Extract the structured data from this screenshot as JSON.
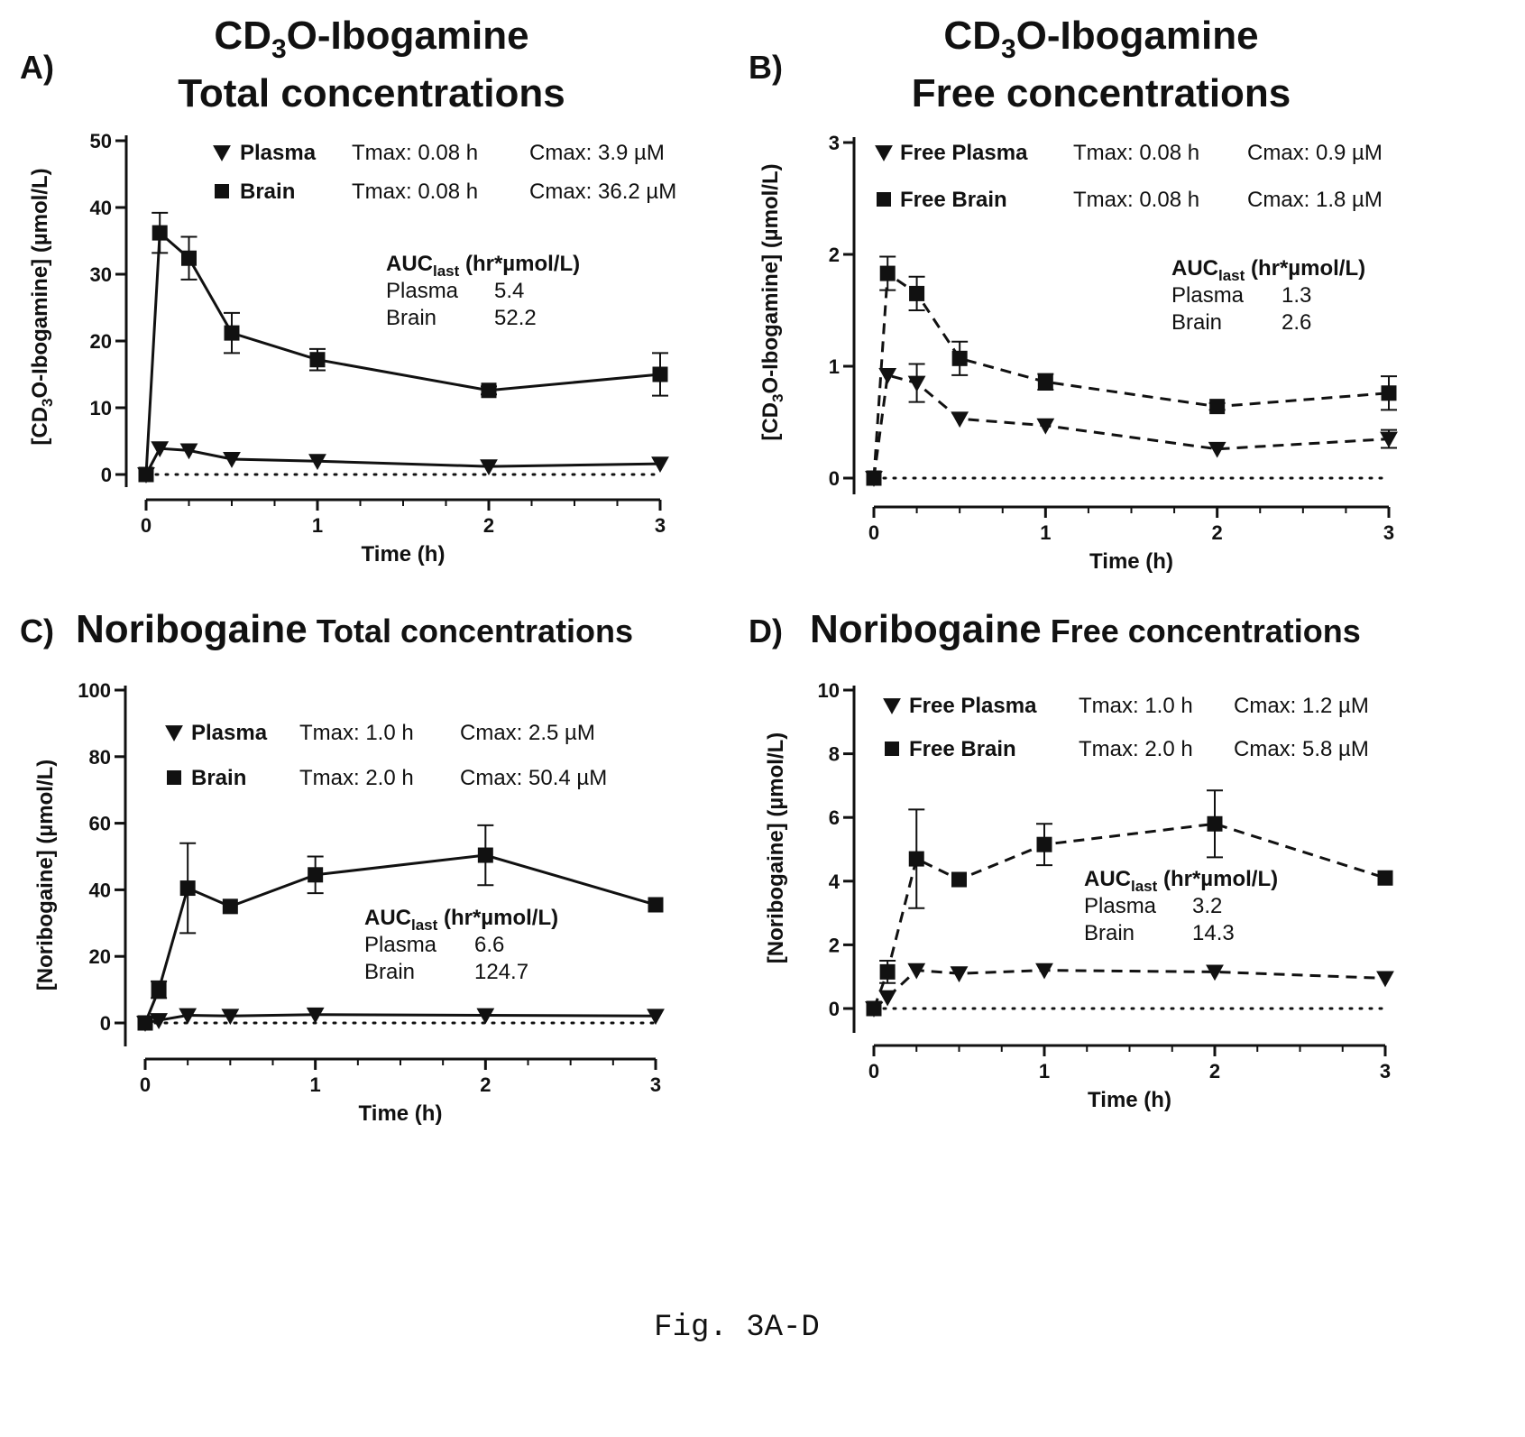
{
  "figure": {
    "caption": "Fig. 3A-D"
  },
  "colors": {
    "ink": "#111111",
    "background": "#ffffff"
  },
  "chart_data": [
    {
      "id": "A",
      "type": "line",
      "letter": "A)",
      "title_parts": [
        "CD",
        "3",
        "O-Ibogamine"
      ],
      "title_line2": "Total concentrations",
      "xlabel": "Time (h)",
      "ylabel_parts": [
        "[CD",
        "3",
        "O-Ibogamine] (µmol/L)"
      ],
      "xlim": [
        0,
        3
      ],
      "ylim": [
        0,
        50
      ],
      "xticks": [
        0,
        1,
        2,
        3
      ],
      "yticks": [
        0,
        10,
        20,
        30,
        40,
        50
      ],
      "line_style": "solid",
      "zero_line": "dotted",
      "legend": [
        {
          "marker": "triangle-down",
          "name": "Plasma",
          "tmax": "Tmax: 0.08 h",
          "cmax": "Cmax: 3.9 µM"
        },
        {
          "marker": "square",
          "name": "Brain",
          "tmax": "Tmax: 0.08 h",
          "cmax": "Cmax: 36.2 µM"
        }
      ],
      "auc": {
        "label": "AUC",
        "sub": "last",
        "unit": "(hr*µmol/L)",
        "rows": [
          {
            "name": "Plasma",
            "value": "5.4"
          },
          {
            "name": "Brain",
            "value": "52.2"
          }
        ]
      },
      "series": [
        {
          "name": "Plasma",
          "marker": "triangle-down",
          "x": [
            0,
            0.08,
            0.25,
            0.5,
            1,
            2,
            3
          ],
          "y": [
            0,
            3.9,
            3.6,
            2.3,
            2.0,
            1.2,
            1.6
          ],
          "err": [
            0,
            0,
            0,
            0,
            0,
            0,
            0
          ]
        },
        {
          "name": "Brain",
          "marker": "square",
          "x": [
            0,
            0.08,
            0.25,
            0.5,
            1,
            2,
            3
          ],
          "y": [
            0,
            36.2,
            32.4,
            21.2,
            17.2,
            12.6,
            15.0
          ],
          "err": [
            0,
            3.0,
            3.2,
            3.0,
            1.6,
            0.6,
            3.2
          ]
        }
      ]
    },
    {
      "id": "B",
      "type": "line",
      "letter": "B)",
      "title_parts": [
        "CD",
        "3",
        "O-Ibogamine"
      ],
      "title_line2": "Free concentrations",
      "xlabel": "Time (h)",
      "ylabel_parts": [
        "[CD",
        "3",
        "O-Ibogamine] (µmol/L)"
      ],
      "xlim": [
        0,
        3
      ],
      "ylim": [
        0,
        3
      ],
      "xticks": [
        0,
        1,
        2,
        3
      ],
      "yticks": [
        0,
        1,
        2,
        3
      ],
      "line_style": "dashed",
      "zero_line": "dotted",
      "legend": [
        {
          "marker": "triangle-down",
          "name": "Free Plasma",
          "tmax": "Tmax: 0.08 h",
          "cmax": "Cmax: 0.9 µM"
        },
        {
          "marker": "square",
          "name": "Free Brain",
          "tmax": "Tmax: 0.08 h",
          "cmax": "Cmax: 1.8 µM"
        }
      ],
      "auc": {
        "label": "AUC",
        "sub": "last",
        "unit": "(hr*µmol/L)",
        "rows": [
          {
            "name": "Plasma",
            "value": "1.3"
          },
          {
            "name": "Brain",
            "value": "2.6"
          }
        ]
      },
      "series": [
        {
          "name": "Free Plasma",
          "marker": "triangle-down",
          "x": [
            0,
            0.08,
            0.25,
            0.5,
            1,
            2,
            3
          ],
          "y": [
            0,
            0.92,
            0.85,
            0.53,
            0.47,
            0.26,
            0.35
          ],
          "err": [
            0,
            0,
            0.17,
            0,
            0,
            0,
            0.08
          ]
        },
        {
          "name": "Free Brain",
          "marker": "square",
          "x": [
            0,
            0.08,
            0.25,
            0.5,
            1,
            2,
            3
          ],
          "y": [
            0,
            1.83,
            1.65,
            1.07,
            0.86,
            0.64,
            0.76
          ],
          "err": [
            0,
            0.15,
            0.15,
            0.15,
            0.07,
            0.03,
            0.15
          ]
        }
      ]
    },
    {
      "id": "C",
      "type": "line",
      "letter": "C)",
      "title_bold": "Noribogaine",
      "title_rest": "Total concentrations",
      "xlabel": "Time (h)",
      "ylabel": "[Noribogaine] (µmol/L)",
      "xlim": [
        0,
        3
      ],
      "ylim": [
        0,
        100
      ],
      "xticks": [
        0,
        1,
        2,
        3
      ],
      "yticks": [
        0,
        20,
        40,
        60,
        80,
        100
      ],
      "line_style": "solid",
      "zero_line": "dotted",
      "legend": [
        {
          "marker": "triangle-down",
          "name": "Plasma",
          "tmax": "Tmax: 1.0 h",
          "cmax": "Cmax: 2.5 µM"
        },
        {
          "marker": "square",
          "name": "Brain",
          "tmax": "Tmax: 2.0 h",
          "cmax": "Cmax: 50.4 µM"
        }
      ],
      "auc": {
        "label": "AUC",
        "sub": "last",
        "unit": "(hr*µmol/L)",
        "rows": [
          {
            "name": "Plasma",
            "value": "6.6"
          },
          {
            "name": "Brain",
            "value": "124.7"
          }
        ]
      },
      "series": [
        {
          "name": "Plasma",
          "marker": "triangle-down",
          "x": [
            0,
            0.08,
            0.25,
            0.5,
            1,
            2,
            3
          ],
          "y": [
            0,
            0.8,
            2.3,
            2.1,
            2.5,
            2.3,
            2.1
          ],
          "err": [
            0,
            0,
            0,
            0,
            0,
            0,
            0
          ]
        },
        {
          "name": "Brain",
          "marker": "square",
          "x": [
            0,
            0.08,
            0.25,
            0.5,
            1,
            2,
            3
          ],
          "y": [
            0,
            10,
            40.5,
            35,
            44.5,
            50.4,
            35.5
          ],
          "err": [
            0,
            2.5,
            13.5,
            0,
            5.5,
            9,
            0
          ]
        }
      ]
    },
    {
      "id": "D",
      "type": "line",
      "letter": "D)",
      "title_bold": "Noribogaine",
      "title_rest": "Free concentrations",
      "xlabel": "Time (h)",
      "ylabel": "[Noribogaine] (µmol/L)",
      "xlim": [
        0,
        3
      ],
      "ylim": [
        0,
        10
      ],
      "xticks": [
        0,
        1,
        2,
        3
      ],
      "yticks": [
        0,
        2,
        4,
        6,
        8,
        10
      ],
      "line_style": "dashed",
      "zero_line": "dotted",
      "legend": [
        {
          "marker": "triangle-down",
          "name": "Free Plasma",
          "tmax": "Tmax: 1.0 h",
          "cmax": "Cmax: 1.2 µM"
        },
        {
          "marker": "square",
          "name": "Free Brain",
          "tmax": "Tmax: 2.0 h",
          "cmax": "Cmax: 5.8 µM"
        }
      ],
      "auc": {
        "label": "AUC",
        "sub": "last",
        "unit": "(hr*µmol/L)",
        "rows": [
          {
            "name": "Plasma",
            "value": "3.2"
          },
          {
            "name": "Brain",
            "value": "14.3"
          }
        ]
      },
      "series": [
        {
          "name": "Free Plasma",
          "marker": "triangle-down",
          "x": [
            0,
            0.08,
            0.25,
            0.5,
            1,
            2,
            3
          ],
          "y": [
            0,
            0.35,
            1.2,
            1.1,
            1.2,
            1.15,
            0.95
          ],
          "err": [
            0,
            0,
            0,
            0,
            0,
            0,
            0
          ]
        },
        {
          "name": "Free Brain",
          "marker": "square",
          "x": [
            0,
            0.08,
            0.25,
            0.5,
            1,
            2,
            3
          ],
          "y": [
            0,
            1.15,
            4.7,
            4.05,
            5.15,
            5.8,
            4.1
          ],
          "err": [
            0,
            0.35,
            1.55,
            0,
            0.65,
            1.05,
            0
          ]
        }
      ]
    }
  ]
}
